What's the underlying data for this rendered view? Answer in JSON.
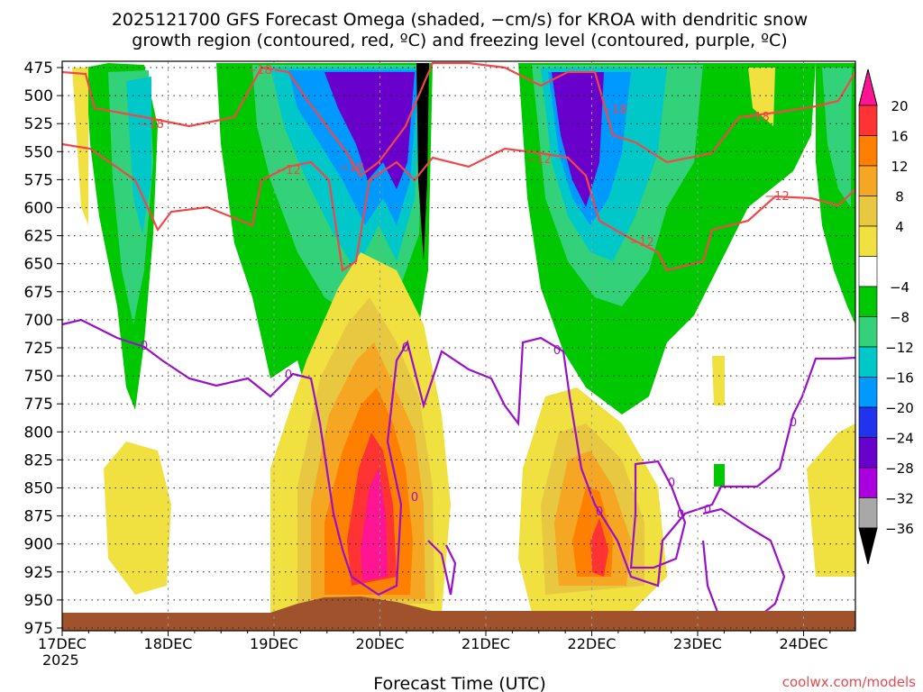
{
  "chart_data": {
    "type": "heatmap",
    "title_line1": "2025121700 GFS Forecast Omega (shaded, −cm/s) for KROA with dendritic snow",
    "title_line2": "growth region (contoured, red, ºC) and freezing level (contoured, purple, ºC)",
    "xlabel": "Forecast Time (UTC)",
    "credit": "coolwx.com/models",
    "x_ticks": [
      "17DEC",
      "18DEC",
      "19DEC",
      "20DEC",
      "21DEC",
      "22DEC",
      "23DEC",
      "24DEC"
    ],
    "x_year": "2025",
    "y_ticks": [
      475,
      500,
      525,
      550,
      575,
      600,
      625,
      650,
      675,
      700,
      725,
      750,
      775,
      800,
      825,
      850,
      875,
      900,
      925,
      950,
      975
    ],
    "y_range": [
      475,
      975
    ],
    "x_range_days": [
      0,
      7.7
    ],
    "colorbar_labels": [
      "20",
      "16",
      "12",
      "8",
      "4",
      "−4",
      "−8",
      "−12",
      "−16",
      "−20",
      "−24",
      "−28",
      "−32",
      "−36"
    ],
    "colorbar_colors": [
      "#ff1493",
      "#ff3333",
      "#ff7f00",
      "#f5a623",
      "#e8c840",
      "#f0e040",
      "#ffffff",
      "#00c800",
      "#33d17a",
      "#00c8c8",
      "#0099ff",
      "#2233ee",
      "#6a00cc",
      "#aa00dd",
      "#a8a8a8",
      "#000000"
    ],
    "contour_labels": {
      "dendritic_minus18": "−18",
      "dendritic_minus12": "−12",
      "freezing": "0"
    },
    "line_colors": {
      "dendritic": "#f04848",
      "freezing": "#9a10c8",
      "terrain": "#a0522d"
    }
  }
}
